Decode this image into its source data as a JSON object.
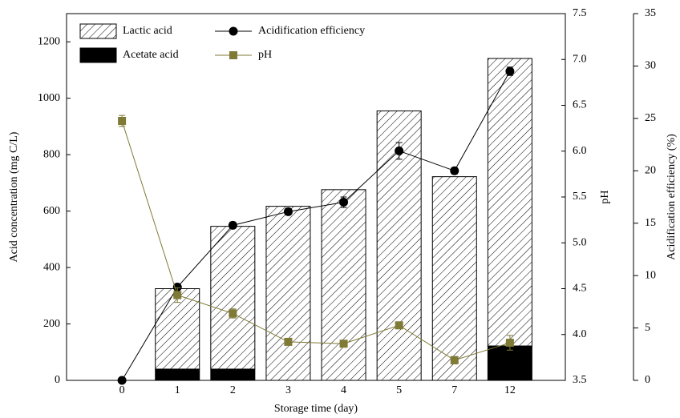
{
  "chart_data": {
    "type": "bar",
    "x_label": "Storage time (day)",
    "y_label": "Acid concentration (mg C/L)",
    "y2_label": "pH",
    "y3_label": "Acidification efficiency (%)",
    "categories": [
      "0",
      "1",
      "2",
      "3",
      "4",
      "5",
      "7",
      "12"
    ],
    "ylim": [
      0,
      1300
    ],
    "yticks": [
      0,
      200,
      400,
      600,
      800,
      1000,
      1200
    ],
    "y2lim": [
      3.5,
      7.5
    ],
    "y2ticks": [
      3.5,
      {
        "value": 4,
        "label": "4.0"
      },
      4.5,
      {
        "value": 5,
        "label": "5.0"
      },
      5.5,
      {
        "value": 6,
        "label": "6.0"
      },
      6.5,
      {
        "value": 7,
        "label": "7.0"
      },
      7.5
    ],
    "y3lim": [
      0,
      35
    ],
    "y3ticks": [
      0,
      5,
      10,
      15,
      20,
      25,
      30,
      35
    ],
    "series": [
      {
        "name": "Lactic acid",
        "type": "bar",
        "pattern": "hatch",
        "color": "#000000",
        "values": [
          0,
          285,
          506,
          617,
          676,
          955,
          722,
          1019
        ]
      },
      {
        "name": "Acetate acid",
        "type": "bar",
        "color": "#000000",
        "values": [
          0,
          40,
          40,
          0,
          0,
          0,
          0,
          122
        ]
      },
      {
        "name": "Acidification efficiency",
        "type": "line",
        "axis": "y3",
        "marker": "circle",
        "color": "#000000",
        "values": [
          0,
          8.9,
          14.8,
          16.1,
          17.0,
          21.9,
          20.0,
          29.5
        ],
        "errors": [
          0,
          0.3,
          0.3,
          0.3,
          0.5,
          0.8,
          0.3,
          0.4
        ]
      },
      {
        "name": "pH",
        "type": "line",
        "axis": "y2",
        "marker": "square",
        "color": "#7f7a35",
        "values": [
          6.33,
          4.43,
          4.23,
          3.92,
          3.9,
          4.1,
          3.72,
          3.91
        ],
        "errors": [
          0.06,
          0.08,
          0.05,
          0.03,
          0.03,
          0.03,
          0.04,
          0.08
        ]
      }
    ]
  }
}
